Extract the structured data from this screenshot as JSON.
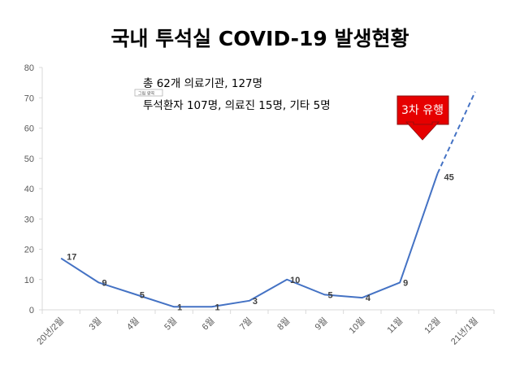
{
  "chart_data": {
    "type": "line",
    "title": "국내 투석실 COVID-19 발생현황",
    "categories": [
      "20년/2월",
      "3월",
      "4월",
      "5월",
      "6월",
      "7월",
      "8월",
      "9월",
      "10월",
      "11월",
      "12월",
      "21년/1월"
    ],
    "series": [
      {
        "values": [
          17,
          9,
          5,
          1,
          1,
          3,
          10,
          5,
          4,
          9,
          45,
          72
        ],
        "labels": [
          "17",
          "9",
          "5",
          "1",
          "1",
          "3",
          "10",
          "5",
          "4",
          "9",
          "45",
          ""
        ],
        "projected_from_index": 10
      }
    ],
    "ylim": [
      0,
      80
    ],
    "yticks": [
      "0",
      "10",
      "20",
      "30",
      "40",
      "50",
      "60",
      "70",
      "80"
    ],
    "grid": false,
    "colors": {
      "line": "#4472c4",
      "callout": "#e60000",
      "axis": "#d9d9d9"
    },
    "annotations": {
      "summary_line1": "총 62개 의료기관, 127명",
      "summary_line2": "투석환자 107명, 의료진 15명, 기타 5명",
      "small_tag": "그림 영역",
      "callout": "3차 유행"
    }
  }
}
